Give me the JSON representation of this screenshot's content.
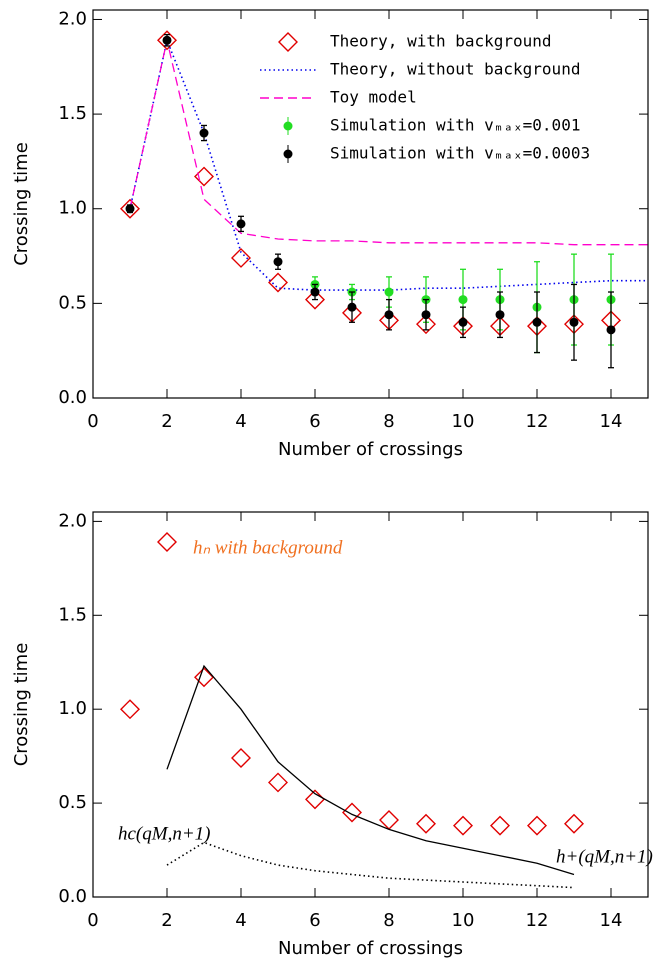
{
  "chart_data": [
    {
      "type": "line",
      "xlabel": "Number of crossings",
      "ylabel": "Crossing time",
      "xlim": [
        0,
        15
      ],
      "ylim": [
        0,
        2.05
      ],
      "xticks": [
        0,
        2,
        4,
        6,
        8,
        10,
        12,
        14
      ],
      "yticks": [
        {
          "value": 0,
          "label": "0.0"
        },
        {
          "value": 0.5,
          "label": "0.5"
        },
        {
          "value": 1,
          "label": "1.0"
        },
        {
          "value": 1.5,
          "label": "1.5"
        },
        {
          "value": 2,
          "label": "2.0"
        }
      ],
      "legend": "upper right",
      "series": [
        {
          "name": "Theory, with background",
          "color": "#e00000",
          "marker": "diamond",
          "x": [
            1,
            2,
            3,
            4,
            5,
            6,
            7,
            8,
            9,
            10,
            11,
            12,
            13,
            14
          ],
          "values": [
            1.0,
            1.89,
            1.17,
            0.74,
            0.61,
            0.52,
            0.45,
            0.41,
            0.39,
            0.38,
            0.38,
            0.38,
            0.39,
            0.41
          ]
        },
        {
          "name": "Theory, without background",
          "color": "#0000ee",
          "line": "dotted",
          "x": [
            1,
            2,
            3,
            4,
            5,
            6,
            7,
            8,
            9,
            10,
            11,
            12,
            13,
            14,
            15
          ],
          "values": [
            1.0,
            1.89,
            1.4,
            0.77,
            0.58,
            0.57,
            0.57,
            0.57,
            0.58,
            0.58,
            0.59,
            0.6,
            0.61,
            0.62,
            0.62
          ]
        },
        {
          "name": "Toy model",
          "color": "#ff00cc",
          "line": "dashed",
          "x": [
            1,
            2,
            3,
            4,
            5,
            6,
            7,
            8,
            9,
            10,
            11,
            12,
            13,
            14,
            15
          ],
          "values": [
            1.0,
            1.89,
            1.05,
            0.87,
            0.84,
            0.83,
            0.83,
            0.82,
            0.82,
            0.82,
            0.82,
            0.82,
            0.81,
            0.81,
            0.81
          ]
        },
        {
          "name": "Simulation with vₘₐₓ=0.001",
          "color": "#22dd22",
          "marker": "errorbar",
          "x": [
            6,
            7,
            8,
            9,
            10,
            11,
            12,
            13,
            14
          ],
          "values": [
            0.6,
            0.56,
            0.56,
            0.52,
            0.52,
            0.52,
            0.48,
            0.52,
            0.52
          ],
          "errors": [
            0.04,
            0.04,
            0.08,
            0.12,
            0.16,
            0.16,
            0.24,
            0.24,
            0.24
          ]
        },
        {
          "name": "Simulation with vₘₐₓ=0.0003",
          "color": "#000000",
          "marker": "errorbar",
          "x": [
            1,
            2,
            3,
            4,
            5,
            6,
            7,
            8,
            9,
            10,
            11,
            12,
            13,
            14
          ],
          "values": [
            1.0,
            1.89,
            1.4,
            0.92,
            0.72,
            0.56,
            0.48,
            0.44,
            0.44,
            0.4,
            0.44,
            0.4,
            0.4,
            0.36
          ],
          "errors": [
            0.02,
            0.03,
            0.04,
            0.04,
            0.04,
            0.04,
            0.08,
            0.08,
            0.08,
            0.08,
            0.12,
            0.16,
            0.2,
            0.2
          ]
        }
      ]
    },
    {
      "type": "line",
      "xlabel": "Number of crossings",
      "ylabel": "Crossing time",
      "xlim": [
        0,
        15
      ],
      "ylim": [
        0,
        2.05
      ],
      "xticks": [
        0,
        2,
        4,
        6,
        8,
        10,
        12,
        14
      ],
      "yticks": [
        {
          "value": 0,
          "label": "0.0"
        },
        {
          "value": 0.5,
          "label": "0.5"
        },
        {
          "value": 1,
          "label": "1.0"
        },
        {
          "value": 1.5,
          "label": "1.5"
        },
        {
          "value": 2,
          "label": "2.0"
        }
      ],
      "annotations": [
        {
          "text": "hₙ with background",
          "color": "#f07020"
        },
        {
          "text": "hc(qM,n+1)",
          "color": "#000000"
        },
        {
          "text": "h+(qM,n+1)",
          "color": "#000000"
        }
      ],
      "series": [
        {
          "color": "#e00000",
          "marker": "diamond",
          "x": [
            1,
            2,
            3,
            4,
            5,
            6,
            7,
            8,
            9,
            10,
            11,
            12,
            13
          ],
          "values": [
            1.0,
            1.89,
            1.17,
            0.74,
            0.61,
            0.52,
            0.45,
            0.41,
            0.39,
            0.38,
            0.38,
            0.38,
            0.39
          ]
        },
        {
          "color": "#000000",
          "line": "solid",
          "x": [
            2,
            3,
            4,
            5,
            6,
            7,
            8,
            9,
            10,
            11,
            12,
            13
          ],
          "values": [
            0.68,
            1.23,
            1.0,
            0.72,
            0.55,
            0.44,
            0.36,
            0.3,
            0.26,
            0.22,
            0.18,
            0.12
          ]
        },
        {
          "color": "#000000",
          "line": "dotted",
          "x": [
            2,
            3,
            4,
            5,
            6,
            7,
            8,
            9,
            10,
            11,
            12,
            13
          ],
          "values": [
            0.17,
            0.29,
            0.22,
            0.17,
            0.14,
            0.12,
            0.1,
            0.09,
            0.08,
            0.07,
            0.06,
            0.05
          ]
        }
      ]
    }
  ]
}
